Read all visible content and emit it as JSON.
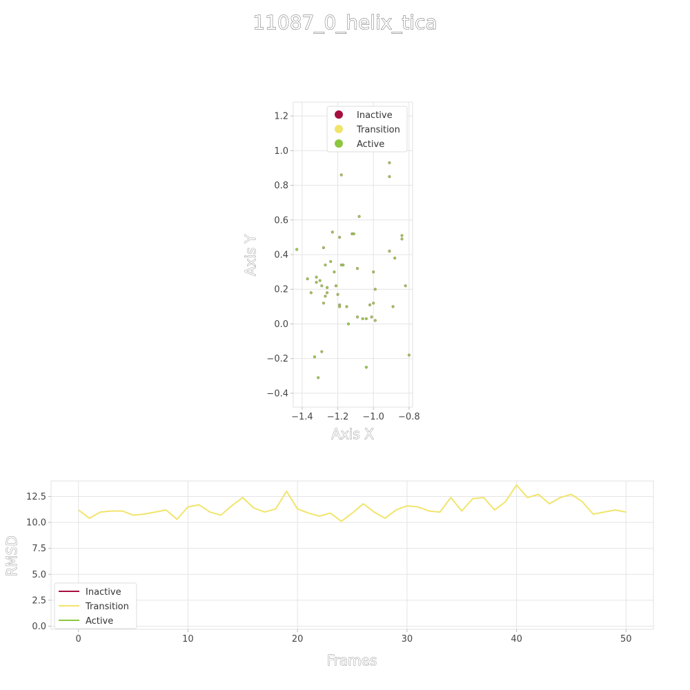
{
  "title": "11087_0_helix_tica",
  "colors": {
    "Inactive": "#a50f3d",
    "Transition": "#f1e46a",
    "Active": "#8cc63e"
  },
  "chart_data": [
    {
      "type": "scatter",
      "xlabel": "Axis X",
      "ylabel": "Axis Y",
      "xlim": [
        -1.45,
        -0.78
      ],
      "ylim": [
        -0.48,
        1.28
      ],
      "xticks": [
        -1.4,
        -1.2,
        -1.0,
        -0.8
      ],
      "xtick_labels": [
        "−1.4",
        "−1.2",
        "−1.0",
        "−0.8"
      ],
      "yticks": [
        -0.4,
        -0.2,
        0.0,
        0.2,
        0.4,
        0.6,
        0.8,
        1.0,
        1.2
      ],
      "ytick_labels": [
        "−0.4",
        "−0.2",
        "0.0",
        "0.2",
        "0.4",
        "0.6",
        "0.8",
        "1.0",
        "1.2"
      ],
      "grid": true,
      "legend_position": "top-right",
      "legend": [
        "Inactive",
        "Transition",
        "Active"
      ],
      "points": [
        [
          -1.43,
          0.43
        ],
        [
          -1.37,
          0.26
        ],
        [
          -1.35,
          0.18
        ],
        [
          -1.33,
          -0.19
        ],
        [
          -1.32,
          0.27
        ],
        [
          -1.32,
          0.24
        ],
        [
          -1.31,
          -0.31
        ],
        [
          -1.3,
          0.25
        ],
        [
          -1.29,
          0.22
        ],
        [
          -1.29,
          -0.16
        ],
        [
          -1.28,
          0.12
        ],
        [
          -1.28,
          0.44
        ],
        [
          -1.27,
          0.16
        ],
        [
          -1.27,
          0.34
        ],
        [
          -1.26,
          0.21
        ],
        [
          -1.26,
          0.18
        ],
        [
          -1.24,
          0.36
        ],
        [
          -1.23,
          0.53
        ],
        [
          -1.22,
          0.3
        ],
        [
          -1.21,
          0.22
        ],
        [
          -1.2,
          0.17
        ],
        [
          -1.19,
          0.11
        ],
        [
          -1.19,
          0.1
        ],
        [
          -1.19,
          0.5
        ],
        [
          -1.18,
          0.86
        ],
        [
          -1.18,
          0.34
        ],
        [
          -1.17,
          0.34
        ],
        [
          -1.15,
          0.1
        ],
        [
          -1.14,
          0.0
        ],
        [
          -1.12,
          0.52
        ],
        [
          -1.11,
          0.52
        ],
        [
          -1.09,
          0.32
        ],
        [
          -1.09,
          0.04
        ],
        [
          -1.08,
          0.62
        ],
        [
          -1.06,
          0.03
        ],
        [
          -1.04,
          0.03
        ],
        [
          -1.04,
          -0.25
        ],
        [
          -1.02,
          0.11
        ],
        [
          -1.01,
          0.04
        ],
        [
          -1.0,
          0.3
        ],
        [
          -1.0,
          0.12
        ],
        [
          -0.99,
          0.2
        ],
        [
          -0.99,
          0.02
        ],
        [
          -0.91,
          0.93
        ],
        [
          -0.91,
          0.85
        ],
        [
          -0.91,
          0.42
        ],
        [
          -0.89,
          0.1
        ],
        [
          -0.88,
          0.38
        ],
        [
          -0.84,
          0.49
        ],
        [
          -0.84,
          0.51
        ],
        [
          -0.82,
          0.22
        ],
        [
          -0.8,
          -0.18
        ]
      ]
    },
    {
      "type": "line",
      "xlabel": "Frames",
      "ylabel": "RMSD",
      "xlim": [
        -2.5,
        52.5
      ],
      "ylim": [
        -0.3,
        14.0
      ],
      "xticks": [
        0,
        10,
        20,
        30,
        40,
        50
      ],
      "xtick_labels": [
        "0",
        "10",
        "20",
        "30",
        "40",
        "50"
      ],
      "yticks": [
        0.0,
        2.5,
        5.0,
        7.5,
        10.0,
        12.5
      ],
      "ytick_labels": [
        "0.0",
        "2.5",
        "5.0",
        "7.5",
        "10.0",
        "12.5"
      ],
      "grid": true,
      "legend_position": "bottom-left",
      "legend": [
        "Inactive",
        "Transition",
        "Active"
      ],
      "series": [
        {
          "name": "Transition",
          "x": [
            0,
            1,
            2,
            3,
            4,
            5,
            6,
            7,
            8,
            9,
            10,
            11,
            12,
            13,
            14,
            15,
            16,
            17,
            18,
            19,
            20,
            21,
            22,
            23,
            24,
            25,
            26,
            27,
            28,
            29,
            30,
            31,
            32,
            33,
            34,
            35,
            36,
            37,
            38,
            39,
            40,
            41,
            42,
            43,
            44,
            45,
            46,
            47,
            48,
            49,
            50
          ],
          "y": [
            11.2,
            10.4,
            11.0,
            11.1,
            11.1,
            10.7,
            10.8,
            11.0,
            11.2,
            10.3,
            11.5,
            11.7,
            11.0,
            10.7,
            11.6,
            12.4,
            11.4,
            11.0,
            11.3,
            13.0,
            11.3,
            10.9,
            10.6,
            10.9,
            10.1,
            10.9,
            11.8,
            11.0,
            10.4,
            11.2,
            11.6,
            11.5,
            11.1,
            11.0,
            12.4,
            11.1,
            12.3,
            12.4,
            11.2,
            12.0,
            13.6,
            12.4,
            12.7,
            11.8,
            12.4,
            12.7,
            12.0,
            10.8,
            11.0,
            11.2,
            11.0
          ]
        }
      ]
    }
  ]
}
